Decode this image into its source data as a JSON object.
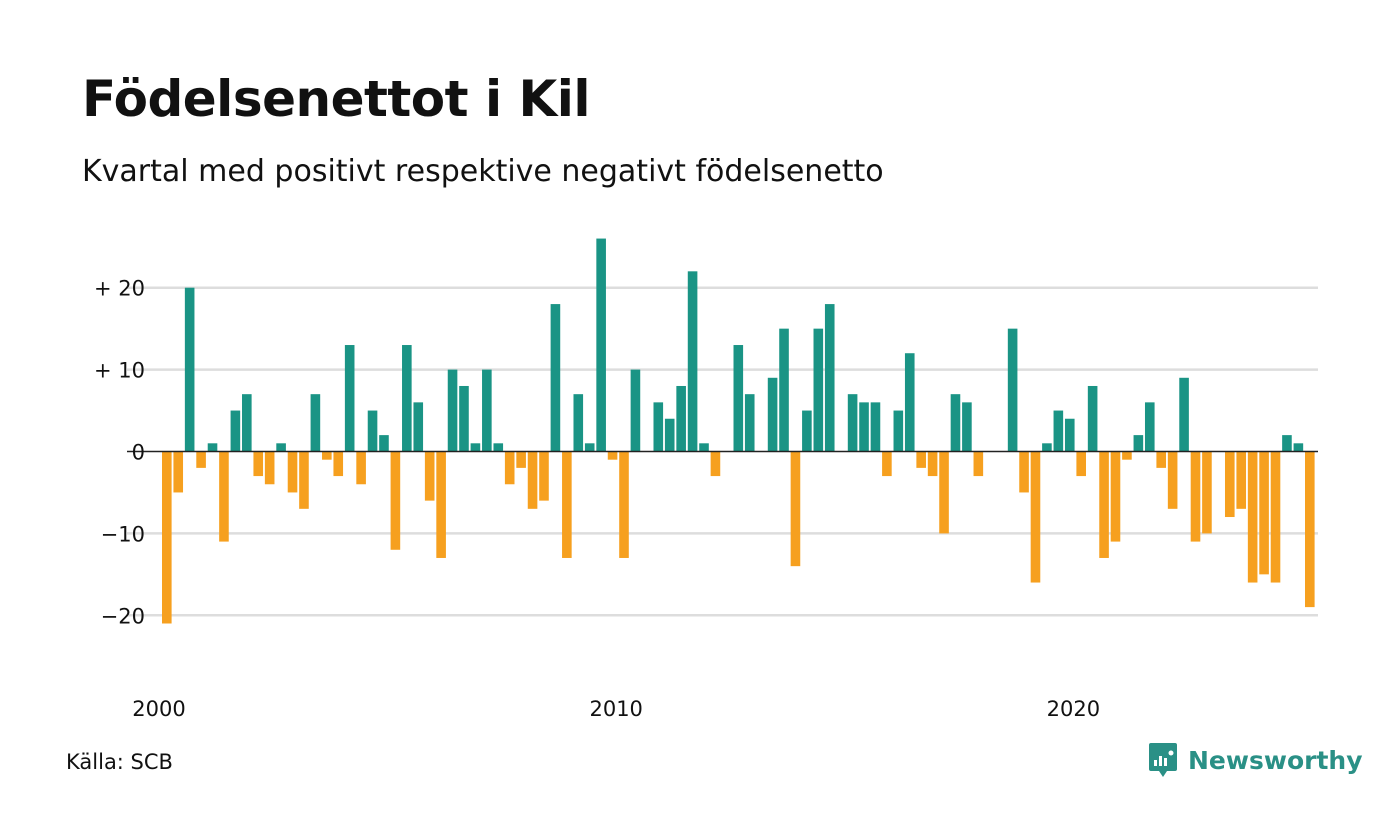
{
  "title": "Födelsenettot i Kil",
  "subtitle": "Kvartal med positivt respektive negativt födelsenetto",
  "source": "Källa: SCB",
  "brand": {
    "name": "Newsworthy",
    "icon": "newsworthy-logo-icon",
    "color": "#2a9086"
  },
  "colors": {
    "positive": "#1a9485",
    "negative": "#f6a01f",
    "grid": "#dddddd",
    "zero_line": "#222222"
  },
  "chart_data": {
    "type": "bar",
    "x_start": "2000 Q1",
    "x_tick_labels": [
      "2000",
      "2010",
      "2020"
    ],
    "y_tick_labels": [
      "+ 20",
      "+ 10",
      "0",
      "−10",
      "−20"
    ],
    "y_ticks": [
      20,
      10,
      0,
      -10,
      -20
    ],
    "ylim": [
      -25,
      27
    ],
    "grid": true,
    "legend": "none",
    "values": [
      -21,
      -5,
      20,
      -2,
      1,
      -11,
      5,
      7,
      -3,
      -4,
      1,
      -5,
      -7,
      7,
      -1,
      -3,
      13,
      -4,
      5,
      2,
      -12,
      13,
      6,
      -6,
      -13,
      10,
      8,
      1,
      10,
      1,
      -4,
      -2,
      -7,
      -6,
      18,
      -13,
      7,
      1,
      26,
      -1,
      -13,
      10,
      0,
      6,
      4,
      8,
      22,
      1,
      -3,
      0,
      13,
      7,
      0,
      9,
      15,
      -14,
      5,
      15,
      18,
      0,
      7,
      6,
      6,
      -3,
      5,
      12,
      -2,
      -3,
      -10,
      7,
      6,
      -3,
      0,
      0,
      15,
      -5,
      -16,
      1,
      5,
      4,
      -3,
      8,
      -13,
      -11,
      -1,
      2,
      6,
      -2,
      -7,
      9,
      -11,
      -10,
      0,
      -8,
      -7,
      -16,
      -15,
      -16,
      2,
      1,
      -19
    ]
  }
}
